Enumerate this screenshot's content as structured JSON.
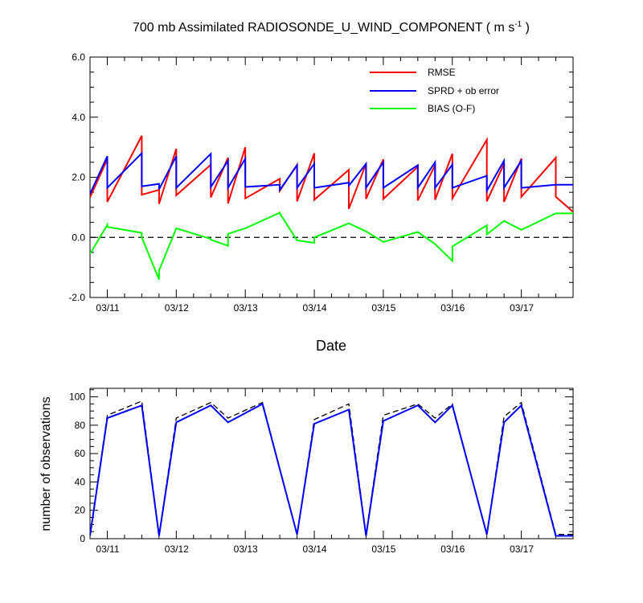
{
  "chart_data": [
    {
      "type": "line",
      "title_main": "700 mb Assimilated RADIOSONDE_U_WIND_COMPONENT ( m s",
      "title_sup": "-1",
      "title_end": " )",
      "xlabel": "Date",
      "ylabel": "",
      "ylim": [
        -2.0,
        6.0
      ],
      "yticks": [
        "6.0",
        "4.0",
        "2.0",
        "0.0",
        "-2.0"
      ],
      "xticks": [
        "03/11",
        "03/12",
        "03/13",
        "03/14",
        "03/15",
        "03/16",
        "03/17"
      ],
      "zero_line": true,
      "legend_position": "top-right",
      "series": [
        {
          "name": "RMSE",
          "color": "#ff0000",
          "x": [
            0.0,
            0.25,
            0.25,
            0.75,
            0.75,
            1.0,
            1.0,
            1.25,
            1.25,
            1.75,
            1.75,
            2.0,
            2.0,
            2.25,
            2.25,
            2.75,
            2.75,
            3.0,
            3.0,
            3.25,
            3.25,
            3.75,
            3.75,
            4.0,
            4.0,
            4.25,
            4.25,
            4.75,
            4.75,
            5.0,
            5.0,
            5.25,
            5.25,
            5.75,
            5.75,
            6.0,
            6.0,
            6.25,
            6.25,
            6.75,
            6.75,
            7.0
          ],
          "values": [
            1.33,
            2.6,
            1.18,
            3.38,
            1.42,
            1.58,
            1.12,
            2.95,
            1.4,
            2.42,
            1.33,
            2.65,
            1.13,
            3.0,
            1.3,
            1.95,
            1.55,
            2.42,
            1.2,
            2.8,
            1.25,
            2.25,
            0.95,
            2.45,
            1.28,
            2.6,
            1.28,
            2.35,
            1.23,
            2.4,
            1.25,
            2.78,
            1.3,
            3.25,
            1.2,
            2.45,
            1.18,
            2.62,
            1.35,
            2.65,
            1.35,
            0.85
          ]
        },
        {
          "name": "SPRD + ob error",
          "color": "#0000ff",
          "x": [
            0.0,
            0.25,
            0.25,
            0.75,
            0.75,
            1.0,
            1.0,
            1.25,
            1.25,
            1.75,
            1.75,
            2.0,
            2.0,
            2.25,
            2.25,
            2.75,
            2.75,
            3.0,
            3.0,
            3.25,
            3.25,
            3.75,
            3.75,
            4.0,
            4.0,
            4.25,
            4.25,
            4.75,
            4.75,
            5.0,
            5.0,
            5.25,
            5.25,
            5.75,
            5.75,
            6.0,
            6.0,
            6.25,
            6.25,
            6.75,
            6.75,
            7.0
          ],
          "values": [
            1.45,
            2.7,
            1.65,
            2.8,
            1.7,
            1.78,
            1.6,
            2.7,
            1.65,
            2.78,
            1.68,
            2.55,
            1.65,
            2.62,
            1.68,
            1.75,
            1.58,
            2.4,
            1.65,
            2.45,
            1.65,
            1.82,
            1.72,
            2.45,
            1.65,
            2.5,
            1.65,
            2.4,
            1.65,
            2.5,
            1.65,
            2.42,
            1.65,
            2.05,
            1.55,
            2.55,
            1.65,
            2.55,
            1.65,
            1.75,
            1.75,
            1.75
          ]
        },
        {
          "name": "BIAS (O-F)",
          "color": "#00ff00",
          "x": [
            0.0,
            0.25,
            0.25,
            0.75,
            0.75,
            1.0,
            1.0,
            1.25,
            1.25,
            1.75,
            1.75,
            2.0,
            2.0,
            2.25,
            2.25,
            2.75,
            2.75,
            3.0,
            3.0,
            3.25,
            3.25,
            3.75,
            3.75,
            4.0,
            4.0,
            4.25,
            4.25,
            4.75,
            4.75,
            5.0,
            5.0,
            5.25,
            5.25,
            5.75,
            5.75,
            6.0,
            6.0,
            6.25,
            6.25,
            6.75,
            6.75,
            7.0
          ],
          "values": [
            -0.55,
            0.42,
            0.35,
            0.15,
            0.0,
            -1.4,
            -1.1,
            0.3,
            0.3,
            -0.05,
            -0.08,
            -0.28,
            0.12,
            0.3,
            0.3,
            0.82,
            0.8,
            -0.1,
            -0.1,
            -0.18,
            0.0,
            0.47,
            0.47,
            0.2,
            0.2,
            -0.15,
            -0.15,
            0.18,
            0.18,
            -0.22,
            -0.22,
            -0.78,
            -0.3,
            0.4,
            0.1,
            0.55,
            0.55,
            0.25,
            0.25,
            0.8,
            0.8,
            0.8
          ]
        }
      ]
    },
    {
      "type": "line",
      "title": "",
      "xlabel": "",
      "ylabel": "number of observations",
      "ylim": [
        0,
        106
      ],
      "yticks": [
        "100",
        "80",
        "60",
        "40",
        "20",
        "0"
      ],
      "xticks": [
        "03/11",
        "03/12",
        "03/13",
        "03/14",
        "03/15",
        "03/16",
        "03/17"
      ],
      "series": [
        {
          "color": "#000000",
          "dash": true,
          "x": [
            0.0,
            0.25,
            0.75,
            1.0,
            1.25,
            1.75,
            2.0,
            2.5,
            3.0,
            3.25,
            3.75,
            4.0,
            4.25,
            4.75,
            5.0,
            5.25,
            5.75,
            6.0,
            6.25,
            6.75,
            7.0
          ],
          "values": [
            3,
            87,
            97,
            3,
            85,
            96,
            85,
            96,
            3,
            84,
            95,
            3,
            87,
            95,
            85,
            95,
            3,
            86,
            96,
            3,
            3
          ]
        },
        {
          "color": "#0000ff",
          "dash": false,
          "x": [
            0.0,
            0.25,
            0.75,
            1.0,
            1.25,
            1.75,
            2.0,
            2.5,
            3.0,
            3.25,
            3.75,
            4.0,
            4.25,
            4.75,
            5.0,
            5.25,
            5.75,
            6.0,
            6.25,
            6.75,
            7.0
          ],
          "values": [
            2,
            85,
            94,
            2,
            82,
            94,
            82,
            95,
            3,
            81,
            91,
            2,
            83,
            94,
            82,
            94,
            3,
            82,
            94,
            2,
            2
          ]
        }
      ]
    }
  ]
}
